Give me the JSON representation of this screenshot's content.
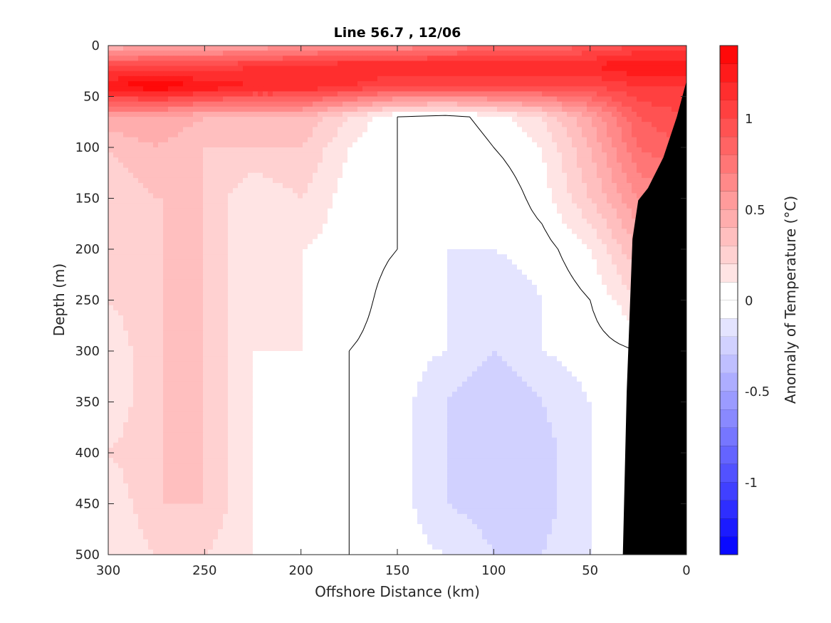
{
  "chart_data": {
    "type": "heatmap",
    "title": "Line 56.7 , 12/06",
    "xlabel": "Offshore Distance (km)",
    "ylabel": "Depth (m)",
    "xlim": [
      300,
      0
    ],
    "ylim": [
      0,
      500
    ],
    "x_reversed": true,
    "y_reversed": true,
    "x_ticks": [
      "300",
      "250",
      "200",
      "150",
      "100",
      "50",
      "0"
    ],
    "y_ticks": [
      "0",
      "50",
      "100",
      "150",
      "200",
      "250",
      "300",
      "350",
      "400",
      "450",
      "500"
    ],
    "colorbar": {
      "label": "Anomaly of Temperature (°C)",
      "range": [
        -1.4,
        1.4
      ],
      "step": 0.1,
      "ticks": [
        "1",
        "0.5",
        "0",
        "-0.5",
        "-1"
      ],
      "tick_values": [
        1,
        0.5,
        0,
        -0.5,
        -1
      ],
      "colors": {
        "negative": "#0000ff",
        "zero": "#ffffff",
        "positive": "#ff0000"
      }
    },
    "grid": false,
    "zero_contour": true,
    "land_mask_color": "#000000",
    "land_boundary": [
      {
        "x": 0,
        "y": 35
      },
      {
        "x": 5,
        "y": 70
      },
      {
        "x": 12,
        "y": 110
      },
      {
        "x": 20,
        "y": 140
      },
      {
        "x": 25,
        "y": 152
      },
      {
        "x": 28,
        "y": 190
      },
      {
        "x": 31,
        "y": 340
      },
      {
        "x": 33,
        "y": 500
      }
    ],
    "field_grid": {
      "x": [
        300,
        275,
        250,
        225,
        200,
        175,
        150,
        125,
        100,
        75,
        50,
        25,
        0
      ],
      "depth": [
        0,
        20,
        40,
        70,
        100,
        150,
        200,
        250,
        300,
        350,
        400,
        450,
        500
      ],
      "values": [
        [
          0.4,
          0.5,
          0.5,
          0.5,
          0.6,
          0.6,
          0.6,
          0.7,
          0.8,
          0.8,
          0.9,
          1.0,
          1.0
        ],
        [
          1.0,
          1.0,
          1.0,
          1.1,
          1.1,
          1.2,
          1.2,
          1.2,
          1.2,
          1.2,
          1.2,
          1.3,
          1.3
        ],
        [
          1.3,
          1.4,
          1.3,
          1.2,
          1.2,
          1.1,
          1.0,
          1.0,
          1.0,
          1.0,
          1.0,
          1.1,
          1.1
        ],
        [
          0.5,
          0.5,
          0.4,
          0.4,
          0.4,
          0.2,
          0.0,
          -0.05,
          0.05,
          0.2,
          0.5,
          0.9,
          1.0
        ],
        [
          0.3,
          0.4,
          0.3,
          0.3,
          0.3,
          0.1,
          0.0,
          -0.1,
          0.0,
          0.1,
          0.4,
          0.8,
          0.9
        ],
        [
          0.2,
          0.3,
          0.3,
          0.1,
          0.2,
          0.05,
          0.0,
          -0.05,
          -0.1,
          0.05,
          0.3,
          0.6,
          0.7
        ],
        [
          0.2,
          0.3,
          0.3,
          0.1,
          0.1,
          0.05,
          0.0,
          -0.1,
          -0.1,
          -0.05,
          0.1,
          0.4,
          0.5
        ],
        [
          0.2,
          0.3,
          0.3,
          0.1,
          0.1,
          0.05,
          -0.05,
          -0.1,
          -0.2,
          -0.1,
          0.0,
          0.2,
          0.3
        ],
        [
          0.1,
          0.3,
          0.3,
          0.1,
          0.1,
          0.0,
          -0.05,
          -0.1,
          -0.2,
          -0.1,
          -0.05,
          0.0,
          0.1
        ],
        [
          0.1,
          0.3,
          0.3,
          0.1,
          0.05,
          0.0,
          -0.05,
          -0.2,
          -0.3,
          -0.2,
          -0.1,
          -0.05,
          0.0
        ],
        [
          0.2,
          0.3,
          0.3,
          0.1,
          0.05,
          0.0,
          -0.05,
          -0.2,
          -0.3,
          -0.25,
          -0.1,
          -0.05,
          0.0
        ],
        [
          0.1,
          0.3,
          0.3,
          0.1,
          0.05,
          0.0,
          -0.05,
          -0.2,
          -0.25,
          -0.25,
          -0.1,
          -0.05,
          0.0
        ],
        [
          0.1,
          0.2,
          0.2,
          0.1,
          0.05,
          0.0,
          -0.05,
          -0.1,
          -0.2,
          -0.2,
          -0.1,
          -0.05,
          0.0
        ]
      ]
    }
  }
}
